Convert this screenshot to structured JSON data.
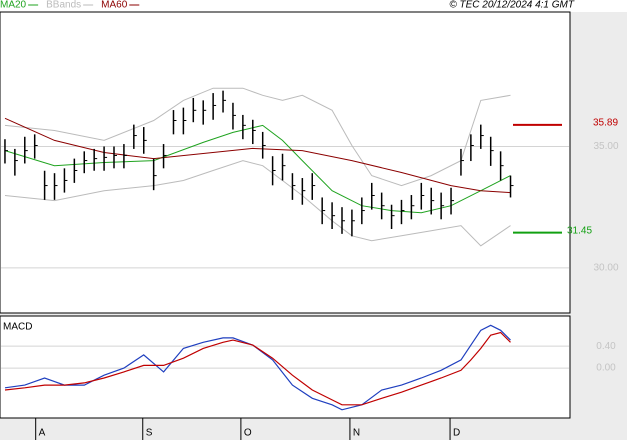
{
  "caption": "© TEC 20/12/2024 4:1 GMT",
  "chart_data": [
    {
      "type": "ohlc",
      "color": "#000000",
      "high": [
        35.3,
        34.9,
        35.4,
        35.5,
        34.0,
        33.9,
        34.1,
        34.5,
        34.8,
        34.9,
        35.0,
        35.0,
        35.1,
        35.9,
        35.8,
        34.5,
        35.1,
        36.5,
        36.6,
        37.0,
        36.9,
        37.2,
        37.3,
        36.8,
        36.3,
        36.1,
        35.6,
        34.6,
        34.7,
        33.9,
        33.7,
        33.9,
        32.9,
        32.7,
        32.5,
        32.4,
        32.9,
        33.5,
        33.1,
        32.6,
        32.8,
        33.0,
        33.5,
        33.3,
        33.1,
        33.3,
        34.9,
        35.5,
        35.9,
        35.4,
        34.8,
        33.8
      ],
      "low": [
        34.3,
        33.8,
        34.3,
        34.5,
        32.8,
        32.8,
        33.1,
        33.5,
        33.9,
        34.0,
        34.0,
        34.1,
        34.1,
        34.9,
        34.7,
        33.2,
        34.1,
        35.5,
        35.5,
        36.0,
        35.9,
        36.1,
        36.4,
        35.7,
        35.3,
        35.1,
        34.5,
        33.4,
        33.6,
        32.8,
        32.6,
        32.8,
        31.8,
        31.6,
        31.4,
        31.3,
        31.8,
        32.4,
        32.0,
        31.6,
        31.8,
        32.0,
        32.4,
        32.2,
        32.0,
        32.2,
        33.8,
        34.4,
        34.9,
        34.2,
        33.6,
        32.9
      ],
      "close": [
        34.83,
        34.42,
        34.83,
        35.04,
        33.39,
        33.39,
        33.6,
        34.01,
        34.42,
        34.5,
        34.55,
        34.63,
        34.63,
        35.45,
        35.25,
        33.8,
        34.63,
        36.07,
        36.07,
        36.49,
        36.49,
        36.69,
        36.9,
        36.28,
        35.87,
        35.66,
        35.04,
        34.01,
        34.21,
        33.39,
        33.18,
        33.39,
        32.36,
        32.15,
        31.94,
        31.94,
        32.36,
        32.98,
        32.56,
        32.15,
        32.36,
        32.56,
        32.98,
        32.77,
        32.56,
        32.77,
        34.42,
        35.04,
        35.45,
        34.83,
        34.21,
        33.39
      ],
      "series": [
        {
          "name": "MA20",
          "color": "#1fa31f",
          "x": [
            0,
            5,
            10,
            15,
            20,
            23,
            26,
            28,
            30,
            33,
            36,
            39,
            42,
            45,
            48,
            51
          ],
          "values": [
            34.83,
            34.21,
            34.34,
            34.42,
            35.17,
            35.58,
            35.87,
            35.25,
            34.42,
            33.18,
            32.56,
            32.36,
            32.27,
            32.56,
            33.18,
            33.8
          ]
        },
        {
          "name": "BBands",
          "color": "#bbbbbb",
          "x": [
            0,
            5,
            10,
            15,
            18,
            21,
            24,
            26,
            28,
            30,
            33,
            35,
            37,
            40,
            43,
            46,
            48,
            51
          ],
          "upper": [
            35.87,
            35.66,
            35.25,
            36.07,
            36.9,
            37.4,
            37.4,
            37.11,
            36.9,
            37.11,
            36.49,
            35.04,
            33.8,
            33.39,
            33.8,
            34.42,
            36.9,
            37.11
          ],
          "lower": [
            32.98,
            32.77,
            33.18,
            33.39,
            33.6,
            34.01,
            34.42,
            34.21,
            33.6,
            32.98,
            31.94,
            31.32,
            31.12,
            31.32,
            31.53,
            31.74,
            30.91,
            31.74
          ]
        },
        {
          "name": "MA60",
          "color": "#8b0000",
          "x": [
            0,
            5,
            10,
            15,
            20,
            25,
            30,
            35,
            40,
            45,
            48,
            51
          ],
          "values": [
            36.16,
            35.25,
            34.75,
            34.5,
            34.71,
            34.92,
            34.83,
            34.42,
            33.93,
            33.39,
            33.18,
            33.1
          ]
        }
      ],
      "levels": [
        {
          "value": 35.89,
          "color": "#c00000"
        },
        {
          "value": 31.45,
          "color": "#12a012"
        }
      ],
      "xlim": [
        -0.5,
        57
      ],
      "ylim": [
        28.14,
        40.54
      ],
      "yticks": [
        {
          "value": 35,
          "label": "35.00"
        },
        {
          "value": 30,
          "label": "30.00"
        }
      ],
      "xticks": [
        {
          "value": 3.1,
          "label": "A"
        },
        {
          "value": 13.9,
          "label": "S"
        },
        {
          "value": 23.8,
          "label": "O"
        },
        {
          "value": 34.8,
          "label": "N"
        },
        {
          "value": 44.9,
          "label": "D"
        }
      ],
      "grid": true
    },
    {
      "type": "line",
      "title": "MACD",
      "x": [
        0,
        2,
        4,
        6,
        8,
        10,
        12,
        14,
        16,
        18,
        20,
        22,
        23,
        25,
        27,
        29,
        31,
        33,
        34,
        36,
        38,
        40,
        42,
        44,
        46,
        47,
        48,
        49,
        50,
        51
      ],
      "series": [
        {
          "color": "#1f3fbf",
          "values": [
            -0.36,
            -0.31,
            -0.18,
            -0.31,
            -0.31,
            -0.13,
            0.0,
            0.24,
            -0.07,
            0.36,
            0.47,
            0.55,
            0.55,
            0.42,
            0.15,
            -0.31,
            -0.55,
            -0.67,
            -0.76,
            -0.67,
            -0.4,
            -0.31,
            -0.18,
            -0.04,
            0.15,
            0.42,
            0.69,
            0.78,
            0.69,
            0.51
          ]
        },
        {
          "color": "#c00000",
          "values": [
            -0.4,
            -0.36,
            -0.31,
            -0.31,
            -0.27,
            -0.18,
            -0.07,
            0.05,
            0.05,
            0.18,
            0.36,
            0.47,
            0.51,
            0.42,
            0.18,
            -0.13,
            -0.4,
            -0.58,
            -0.67,
            -0.67,
            -0.55,
            -0.44,
            -0.31,
            -0.18,
            -0.04,
            0.15,
            0.36,
            0.6,
            0.65,
            0.47
          ]
        }
      ],
      "xlim": [
        -0.5,
        57
      ],
      "ylim": [
        -0.91,
        0.95
      ],
      "yticks": [
        {
          "value": 0.4,
          "label": "0.40"
        },
        {
          "value": 0,
          "label": "0.00"
        }
      ],
      "grid": true
    }
  ]
}
